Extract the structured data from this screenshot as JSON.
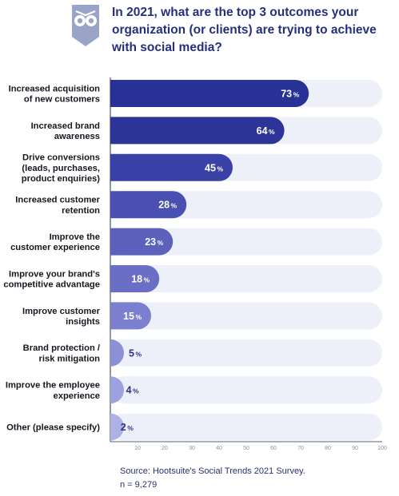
{
  "title": "In 2021, what are the top 3 outcomes your organization (or clients) are trying to achieve with social media?",
  "logo_icon": "owl-logo-icon",
  "source": "Source: Hootsuite's Social Trends 2021 Survey.",
  "sample_size": "n = 9,279",
  "colors": {
    "track": "#eef0f9",
    "axis": "#5c6070",
    "label_text": "#14181f",
    "value_inside": "#ffffff",
    "value_outside": "#2b3287",
    "bar_gradient": [
      "#273196",
      "#2c3597",
      "#3a42a7",
      "#4a4fb2",
      "#5d61bc",
      "#6a6ec4",
      "#7b7fcd",
      "#8c90d5",
      "#9da1dd",
      "#aeb1e4"
    ]
  },
  "chart_data": {
    "type": "bar",
    "orientation": "horizontal",
    "title": "",
    "xlabel": "",
    "ylabel": "",
    "xlim": [
      0,
      100
    ],
    "ticks": [
      10,
      20,
      30,
      40,
      50,
      60,
      70,
      80,
      90,
      100
    ],
    "unit": "%",
    "grid": false,
    "legend": "none",
    "categories": [
      "Increased acquisition of new customers",
      "Increased brand awareness",
      "Drive conversions (leads, purchases, product enquiries)",
      "Increased customer retention",
      "Improve the customer experience",
      "Improve your brand's competitive advantage",
      "Improve customer insights",
      "Brand protection / risk mitigation",
      "Improve the employee experience",
      "Other (please specify)"
    ],
    "category_label_lines": [
      [
        "Increased acquisition",
        "of new customers"
      ],
      [
        "Increased brand",
        "awareness"
      ],
      [
        "Drive conversions",
        "(leads, purchases,",
        "product enquiries)"
      ],
      [
        "Increased customer",
        "retention"
      ],
      [
        "Improve the",
        "customer experience"
      ],
      [
        "Improve your brand's",
        "competitive advantage"
      ],
      [
        "Improve customer",
        "insights"
      ],
      [
        "Brand protection /",
        "risk mitigation"
      ],
      [
        "Improve the employee",
        "experience"
      ],
      [
        "Other (please specify)"
      ]
    ],
    "values": [
      73,
      64,
      45,
      28,
      23,
      18,
      15,
      5,
      4,
      2
    ]
  }
}
